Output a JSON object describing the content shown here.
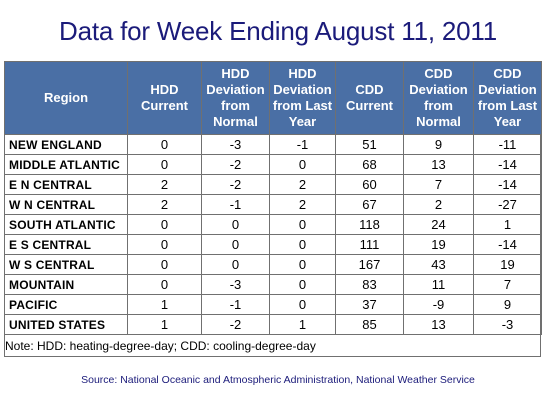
{
  "title": "Data for Week Ending August 11, 2011",
  "table": {
    "headers": [
      [
        "Region"
      ],
      [
        "HDD",
        "Current"
      ],
      [
        "HDD",
        "Deviation",
        "from",
        "Normal"
      ],
      [
        "HDD",
        "Deviation",
        "from Last",
        "Year"
      ],
      [
        "CDD",
        "Current"
      ],
      [
        "CDD",
        "Deviation",
        "from",
        "Normal"
      ],
      [
        "CDD",
        "Deviation",
        "from Last",
        "Year"
      ]
    ],
    "rows": [
      [
        "NEW ENGLAND",
        "0",
        "-3",
        "-1",
        "51",
        "9",
        "-11"
      ],
      [
        "MIDDLE ATLANTIC",
        "0",
        "-2",
        "0",
        "68",
        "13",
        "-14"
      ],
      [
        "E N CENTRAL",
        "2",
        "-2",
        "2",
        "60",
        "7",
        "-14"
      ],
      [
        "W N CENTRAL",
        "2",
        "-1",
        "2",
        "67",
        "2",
        "-27"
      ],
      [
        "SOUTH ATLANTIC",
        "0",
        "0",
        "0",
        "118",
        "24",
        "1"
      ],
      [
        "E S CENTRAL",
        "0",
        "0",
        "0",
        "111",
        "19",
        "-14"
      ],
      [
        "W S CENTRAL",
        "0",
        "0",
        "0",
        "167",
        "43",
        "19"
      ],
      [
        "MOUNTAIN",
        "0",
        "-3",
        "0",
        "83",
        "11",
        "7"
      ],
      [
        "PACIFIC",
        "1",
        "-1",
        "0",
        "37",
        "-9",
        "9"
      ],
      [
        "UNITED STATES",
        "1",
        "-2",
        "1",
        "85",
        "13",
        "-3"
      ]
    ]
  },
  "note": "Note: HDD: heating-degree-day; CDD: cooling-degree-day",
  "source": "Source:  National Oceanic and Atmospheric Administration, National Weather Service",
  "colors": {
    "title": "#1b1b7a",
    "header_bg": "#4a6fa5",
    "header_text": "#ffffff"
  }
}
